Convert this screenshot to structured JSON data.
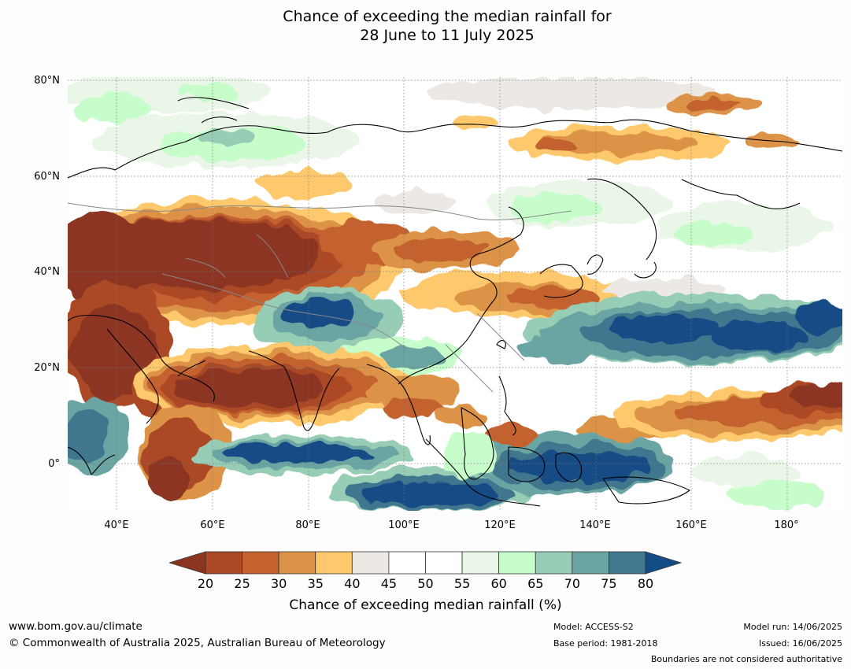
{
  "title": {
    "line1": "Chance of exceeding the median rainfall for",
    "line2": "28 June to 11 July 2025"
  },
  "map": {
    "lat_labels": [
      "80°N",
      "60°N",
      "40°N",
      "20°N",
      "0°"
    ],
    "lon_labels": [
      "40°E",
      "60°E",
      "80°E",
      "100°E",
      "120°E",
      "140°E",
      "160°E",
      "180°"
    ],
    "extent": {
      "lon_min": 30,
      "lon_max": 191.5,
      "lat_min": -10,
      "lat_max": 80.5
    }
  },
  "colorbar": {
    "label": "Chance of exceeding median rainfall (%)",
    "ticks": [
      "20",
      "25",
      "30",
      "35",
      "40",
      "45",
      "50",
      "55",
      "60",
      "65",
      "70",
      "75",
      "80"
    ],
    "under_color": "#8b3420",
    "over_color": "#134c86",
    "colors": [
      "#ab4927",
      "#c3622f",
      "#dd9347",
      "#fec96c",
      "#ece8e4",
      "#ffffff",
      "#ffffff",
      "#e9f6e8",
      "#c6fdca",
      "#97ccb5",
      "#6aa5a3",
      "#41778f"
    ]
  },
  "footer": {
    "website": "www.bom.gov.au/climate",
    "copyright": "© Commonwealth of Australia 2025, Australian Bureau of Meteorology",
    "model": "Model: ACCESS-S2",
    "base_period": "Base period: 1981-2018",
    "model_run": "Model run: 14/06/2025",
    "issued": "Issued: 16/06/2025",
    "boundaries": "Boundaries are not considered authoritative"
  }
}
